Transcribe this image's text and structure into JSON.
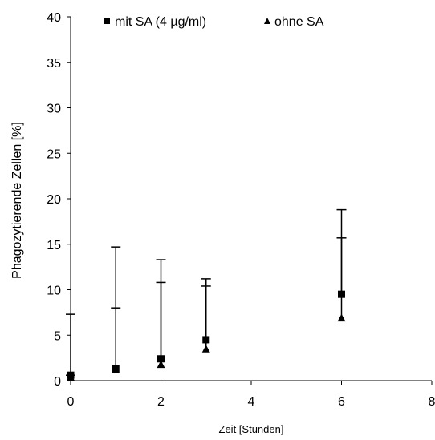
{
  "chart_data": {
    "type": "scatter",
    "xlabel": "Zeit [Stunden]",
    "ylabel": "Phagozytierende Zellen [%]",
    "xlim": [
      0,
      8
    ],
    "ylim": [
      0,
      40
    ],
    "x_ticks": [
      "0",
      "2",
      "4",
      "6",
      "8"
    ],
    "y_ticks": [
      "0",
      "5",
      "10",
      "15",
      "20",
      "25",
      "30",
      "35",
      "40"
    ],
    "grid": false,
    "legend_placement": "top",
    "series": [
      {
        "name": "mit SA (4 µg/ml)",
        "marker": "square",
        "color": "#000000",
        "x": [
          0,
          1,
          2,
          3,
          6
        ],
        "y": [
          0.6,
          1.3,
          2.4,
          4.5,
          9.5
        ],
        "error_upper": [
          7.3,
          14.7,
          13.3,
          11.2,
          18.8
        ]
      },
      {
        "name": "ohne SA",
        "marker": "triangle",
        "color": "#000000",
        "x": [
          0,
          1,
          2,
          3,
          6
        ],
        "y": [
          0.4,
          1.2,
          1.8,
          3.5,
          6.9
        ],
        "error_upper": [
          0.6,
          8.0,
          10.8,
          10.4,
          15.7
        ]
      }
    ]
  }
}
